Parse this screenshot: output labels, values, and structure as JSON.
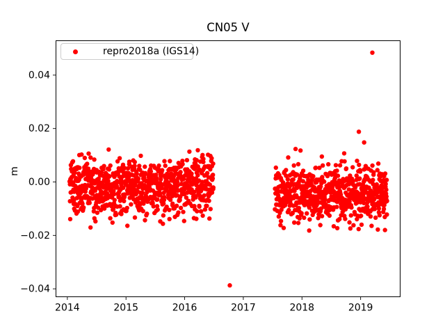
{
  "chart_data": {
    "type": "scatter",
    "title": "CN05 V",
    "xlabel": "",
    "ylabel": "m",
    "xlim": [
      2013.8,
      2019.68
    ],
    "ylim": [
      -0.0431,
      0.053
    ],
    "xticks": [
      2014,
      2015,
      2016,
      2017,
      2018,
      2019
    ],
    "xtick_labels": [
      "2014",
      "2015",
      "2016",
      "2017",
      "2018",
      "2019"
    ],
    "yticks": [
      -0.04,
      -0.02,
      0.0,
      0.02,
      0.04
    ],
    "ytick_labels": [
      "−0.04",
      "−0.02",
      "0.00",
      "0.02",
      "0.04"
    ],
    "grid": false,
    "legend": {
      "label": "repro2018a (IGS14)",
      "location": "upper left"
    },
    "marker": {
      "shape": "dot",
      "color": "#ff0000",
      "radius_px": 3.2
    },
    "axis_color": "#000000",
    "series": [
      {
        "name": "repro2018a (IGS14)",
        "color": "#ff0000",
        "representation": "generated_scatter_daily",
        "seed": 42,
        "clusters": [
          {
            "t_start": 2014.04,
            "t_end": 2016.49,
            "n": 860,
            "mean": -0.0022,
            "sd": 0.0055,
            "clip_min": -0.0195,
            "clip_max": 0.0165
          },
          {
            "t_start": 2017.54,
            "t_end": 2019.45,
            "n": 680,
            "mean": -0.004,
            "sd": 0.0053,
            "clip_min": -0.0195,
            "clip_max": 0.019
          }
        ],
        "outlier_points": [
          [
            2016.77,
            -0.0387
          ],
          [
            2019.2,
            0.0484
          ],
          [
            2018.97,
            0.0188
          ],
          [
            2019.06,
            0.0148
          ]
        ]
      }
    ]
  }
}
